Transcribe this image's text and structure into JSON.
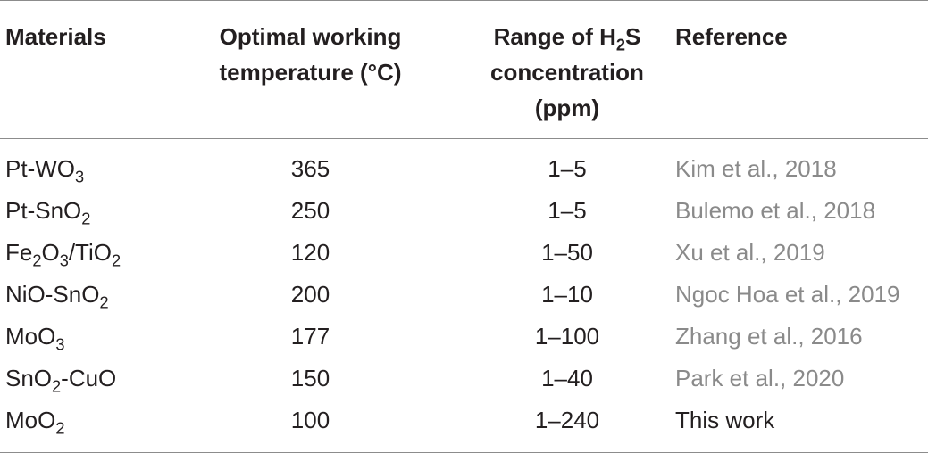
{
  "table": {
    "headers": {
      "materials": "Materials",
      "temp_line1": "Optimal working",
      "temp_line2": "temperature (°C)",
      "range_pre": "Range of H",
      "range_sub": "2",
      "range_post": "S",
      "range_line2": "concentration",
      "range_line3": "(ppm)",
      "reference": "Reference"
    },
    "rows": [
      {
        "mat_a": "Pt-WO",
        "mat_a_sub": "3",
        "mat_b": "",
        "mat_b_sub": "",
        "mat_c": "",
        "temp": "365",
        "range": "1–5",
        "ref": "Kim et al., 2018"
      },
      {
        "mat_a": "Pt-SnO",
        "mat_a_sub": "2",
        "mat_b": "",
        "mat_b_sub": "",
        "mat_c": "",
        "temp": "250",
        "range": "1–5",
        "ref": "Bulemo et al., 2018"
      },
      {
        "mat_a": "Fe",
        "mat_a_sub": "2",
        "mat_b": "O",
        "mat_b_sub": "3",
        "mat_c": "/TiO",
        "mat_c_sub": "2",
        "temp": "120",
        "range": "1–50",
        "ref": "Xu et al., 2019"
      },
      {
        "mat_a": "NiO-SnO",
        "mat_a_sub": "2",
        "mat_b": "",
        "mat_b_sub": "",
        "mat_c": "",
        "temp": "200",
        "range": "1–10",
        "ref": "Ngoc Hoa et al., 2019"
      },
      {
        "mat_a": "MoO",
        "mat_a_sub": "3",
        "mat_b": "",
        "mat_b_sub": "",
        "mat_c": "",
        "temp": "177",
        "range": "1–100",
        "ref": "Zhang et al., 2016"
      },
      {
        "mat_a": "SnO",
        "mat_a_sub": "2",
        "mat_b": "-CuO",
        "mat_b_sub": "",
        "mat_c": "",
        "temp": "150",
        "range": "1–40",
        "ref": "Park et al., 2020"
      },
      {
        "mat_a": "MoO",
        "mat_a_sub": "2",
        "mat_b": "",
        "mat_b_sub": "",
        "mat_c": "",
        "temp": "100",
        "range": "1–240",
        "ref": "This work"
      }
    ]
  }
}
